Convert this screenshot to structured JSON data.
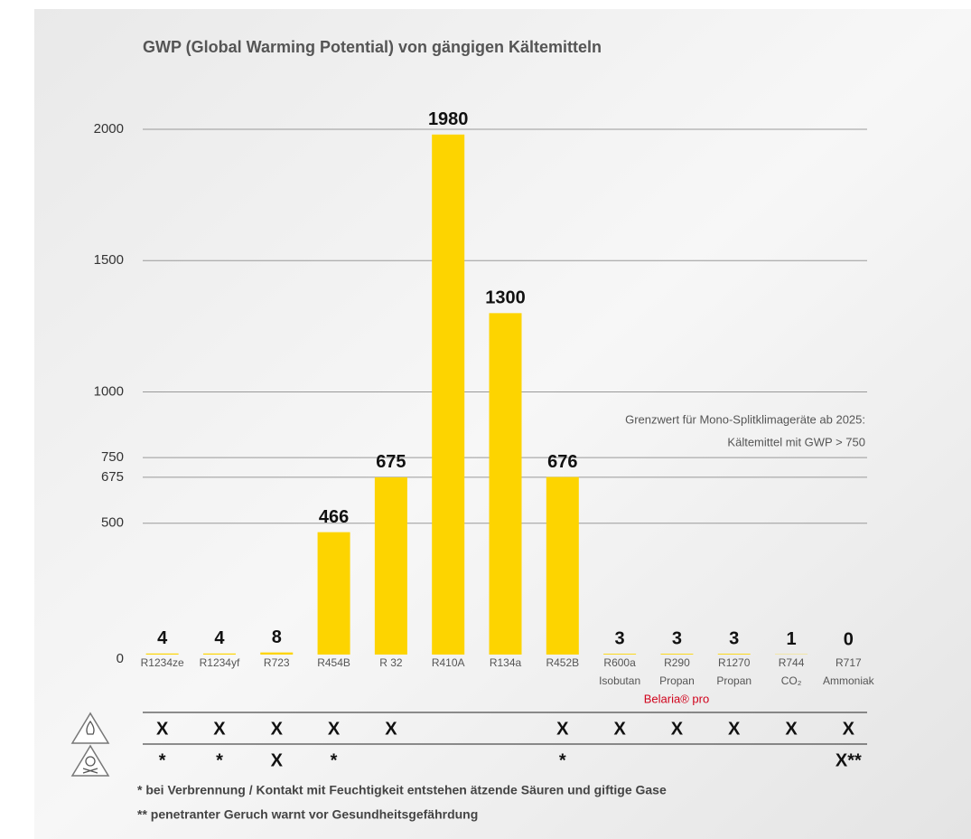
{
  "chart_data": {
    "type": "bar",
    "title": "GWP (Global Warming Potential) von gängigen Kältemitteln",
    "categories": [
      "R1234ze",
      "R1234yf",
      "R723",
      "R454B",
      "R 32",
      "R410A",
      "R134a",
      "R452B",
      "R600a",
      "R290",
      "R1270",
      "R744",
      "R717"
    ],
    "category_sublabels": [
      null,
      null,
      null,
      null,
      null,
      null,
      null,
      null,
      "Isobutan",
      "Propan",
      "Propan",
      "CO₂",
      "Ammoniak"
    ],
    "values": [
      4,
      4,
      8,
      466,
      675,
      1980,
      1300,
      676,
      3,
      3,
      3,
      1,
      0
    ],
    "color": "#fdd400",
    "ylim": [
      0,
      2000
    ],
    "yticks": [
      0,
      500,
      675,
      750,
      1000,
      1500,
      2000
    ],
    "grid": true,
    "annotations": [
      "Grenzwert für Mono-Splitklimageräte ab 2025:",
      "Kältemittel mit GWP > 750",
      "Belaria® pro"
    ]
  },
  "hazards": {
    "flammable": [
      "X",
      "X",
      "X",
      "X",
      "X",
      null,
      null,
      "X",
      "X",
      "X",
      "X",
      "X",
      "X"
    ],
    "toxic": [
      "*",
      "*",
      "X",
      "*",
      null,
      null,
      null,
      "*",
      null,
      null,
      null,
      null,
      "X**"
    ]
  },
  "notes": [
    "*  bei Verbrennung / Kontakt mit Feuchtigkeit entstehen ätzende Säuren und giftige Gase",
    "** penetranter Geruch warnt vor Gesundheitsgefährdung"
  ]
}
